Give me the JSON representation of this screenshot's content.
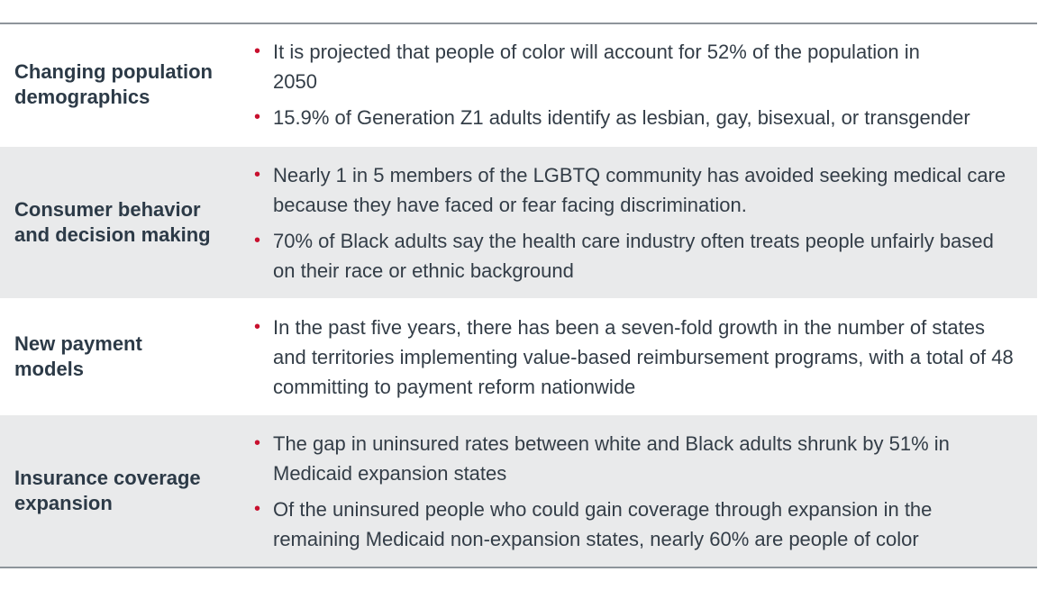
{
  "theme": {
    "bullet_color": "#c8102e",
    "shaded_row_color": "#e9eaeb",
    "border_color": "#8e959b",
    "text_color": "#2c3a47"
  },
  "rows": [
    {
      "label": "Changing population demographics",
      "shaded": false,
      "bullets": [
        "It is projected that people of color will account for 52% of the population in 2050",
        "15.9% of Generation Z1 adults identify as lesbian, gay, bisexual, or transgender"
      ]
    },
    {
      "label": "Consumer behavior and decision making",
      "shaded": true,
      "bullets": [
        "Nearly 1 in 5 members of the LGBTQ community has avoided seeking medical care because they have faced or fear facing discrimination.",
        "70% of Black adults say the health care industry often treats people unfairly based on their race or ethnic background"
      ]
    },
    {
      "label": "New payment models",
      "shaded": false,
      "bullets": [
        "In the past five years, there has been a seven-fold growth in the number of states and territories implementing value-based reimbursement programs, with a total of 48 committing to payment reform nationwide"
      ]
    },
    {
      "label": "Insurance coverage expansion",
      "shaded": true,
      "bullets": [
        "The gap in uninsured rates between white and Black adults shrunk by 51% in Medicaid expansion states",
        "Of the uninsured people who could gain coverage through expansion in the remaining Medicaid non-expansion states, nearly 60% are people of color"
      ]
    }
  ]
}
